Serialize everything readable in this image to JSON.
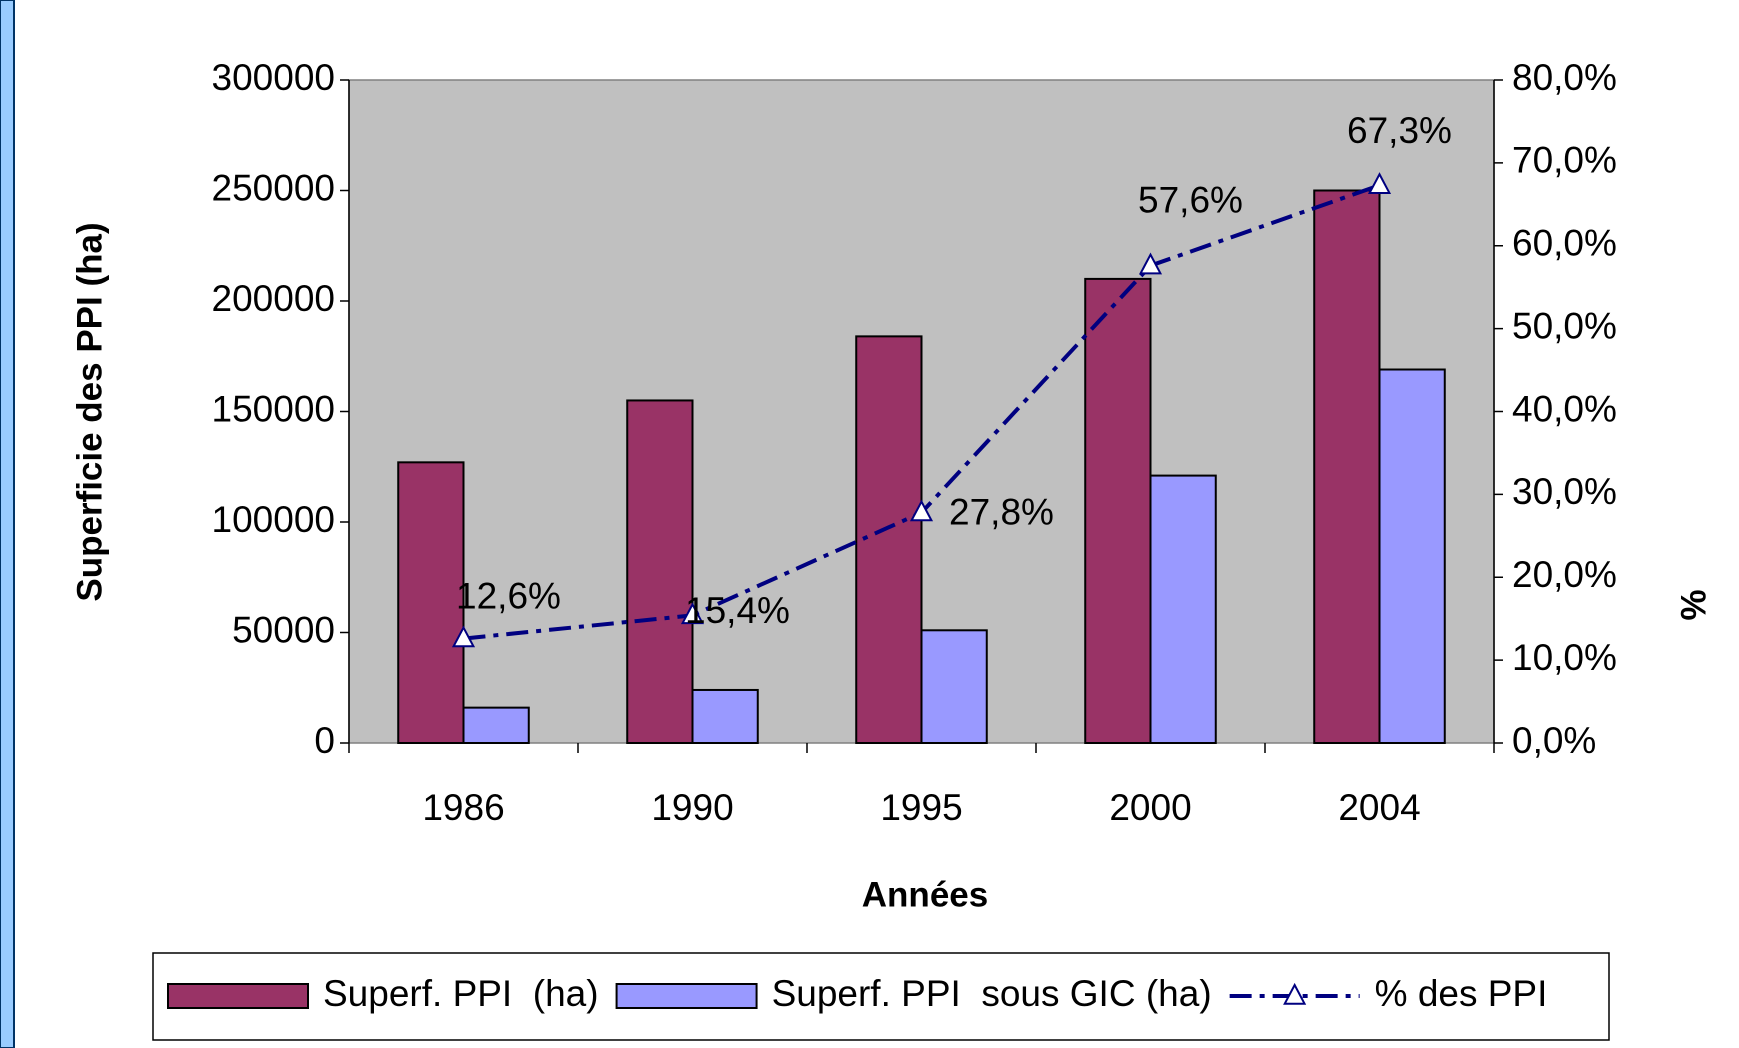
{
  "chart_data": {
    "type": "bar",
    "categories": [
      "1986",
      "1990",
      "1995",
      "2000",
      "2004"
    ],
    "xlabel": "Années",
    "ylabel": "Superficie des PPI (ha)",
    "y2label": "%",
    "ylim": [
      0,
      300000
    ],
    "yticks": [
      0,
      50000,
      100000,
      150000,
      200000,
      250000,
      300000
    ],
    "y2lim": [
      0,
      80
    ],
    "y2ticks": [
      {
        "value": 0,
        "label": "0,0%"
      },
      {
        "value": 10,
        "label": "10,0%"
      },
      {
        "value": 20,
        "label": "20,0%"
      },
      {
        "value": 30,
        "label": "30,0%"
      },
      {
        "value": 40,
        "label": "40,0%"
      },
      {
        "value": 50,
        "label": "50,0%"
      },
      {
        "value": 60,
        "label": "60,0%"
      },
      {
        "value": 70,
        "label": "70,0%"
      },
      {
        "value": 80,
        "label": "80,0%"
      }
    ],
    "series": [
      {
        "name": "Superf. PPI  (ha)",
        "type": "bar",
        "color": "#993366",
        "values": [
          127000,
          155000,
          184000,
          210000,
          250000
        ]
      },
      {
        "name": "Superf. PPI  sous GIC (ha)",
        "type": "bar",
        "color": "#9999ff",
        "values": [
          16000,
          24000,
          51000,
          121000,
          169000
        ]
      },
      {
        "name": "% des PPI",
        "type": "line",
        "axis": "y2",
        "color": "#000080",
        "values": [
          12.6,
          15.4,
          27.8,
          57.6,
          67.3
        ],
        "value_labels": [
          "12,6%",
          "15,4%",
          "27,8%",
          "57,6%",
          "67,3%"
        ]
      }
    ],
    "legend": "bottom"
  }
}
